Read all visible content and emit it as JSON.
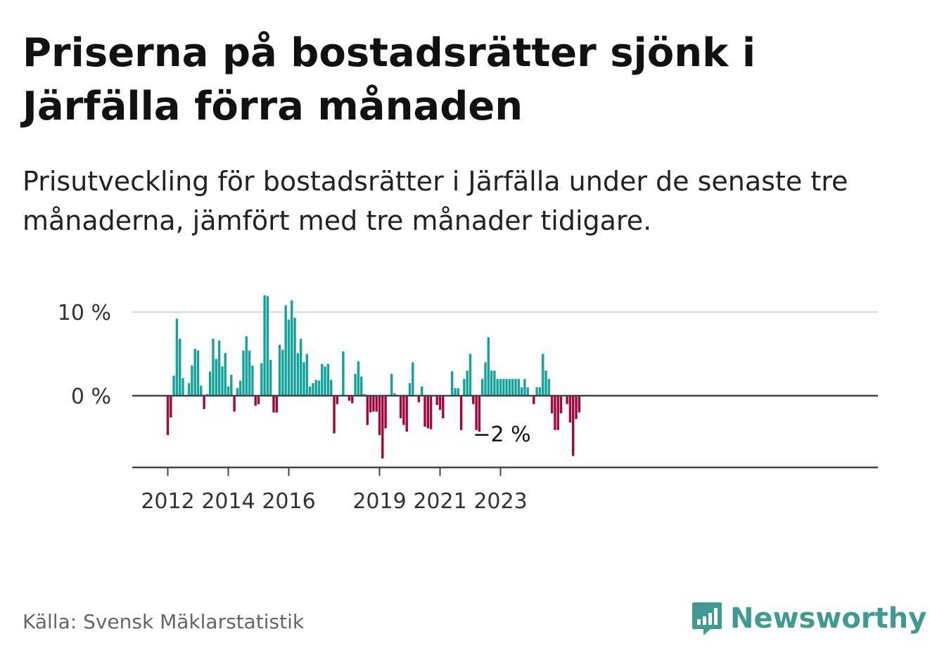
{
  "title": "Priserna på bostadsrätter sjönk i Järfälla förra månaden",
  "subtitle": "Prisutveckling för bostadsrätter i Järfälla under de senaste tre månaderna, jämfört med tre månader tidigare.",
  "source": "Källa: Svensk Mäklarstatistik",
  "logo": {
    "text": "Newsworthy",
    "icon": "newsworthy-logo-icon"
  },
  "colors": {
    "positive": "#12a39b",
    "negative": "#a3063d",
    "axis": "#444444",
    "grid": "#dddddd"
  },
  "chart_data": {
    "type": "bar",
    "y_ticks": [
      {
        "value": 0,
        "label": "0 %"
      },
      {
        "value": 10,
        "label": "10 %"
      }
    ],
    "ylim": [
      -8.5,
      12
    ],
    "x_ticks": [
      {
        "index": 0,
        "label": "2012"
      },
      {
        "index": 20,
        "label": "2014"
      },
      {
        "index": 40,
        "label": "2016"
      },
      {
        "index": 70,
        "label": "2019"
      },
      {
        "index": 90,
        "label": "2021"
      },
      {
        "index": 110,
        "label": "2023"
      }
    ],
    "annotation": {
      "index": 110,
      "label": "−2 %"
    },
    "values": [
      -4.7,
      -2.6,
      2.4,
      9.2,
      6.8,
      2.1,
      0,
      1.5,
      3.6,
      5.6,
      5.4,
      1.2,
      -1.6,
      0.2,
      2.9,
      6.8,
      4.4,
      6.6,
      3.5,
      5.1,
      1.1,
      2.5,
      -1.9,
      0.9,
      1.8,
      5.4,
      7.1,
      5.4,
      3.6,
      -1.2,
      -1.0,
      3.9,
      12.0,
      11.9,
      4.3,
      -2.0,
      -2.0,
      6.1,
      5.5,
      10.8,
      9.1,
      11.4,
      9.3,
      5.1,
      6.8,
      4.0,
      5.0,
      1.1,
      1.5,
      1.9,
      1.8,
      3.8,
      3.5,
      3.8,
      1.9,
      -4.5,
      -1.0,
      0,
      5.3,
      0,
      -0.6,
      -0.9,
      2.6,
      4.1,
      2.3,
      0.2,
      -3.5,
      -2.0,
      -1.9,
      -1.9,
      -4.7,
      -7.5,
      -3.9,
      0,
      2.6,
      0.3,
      0,
      -2.7,
      -3.5,
      -4.3,
      1.5,
      4.0,
      0,
      -0.8,
      1.1,
      -3.7,
      -3.9,
      -4.0,
      0,
      -1.1,
      -1.7,
      -2.7,
      0,
      0,
      2.9,
      0.9,
      0.9,
      -4.1,
      2.0,
      3.0,
      5.0,
      -1.0,
      -4.1,
      -5.0,
      2.0,
      4.0,
      7.0,
      3.0,
      3.0,
      2.0,
      2.0,
      2.0,
      2.0,
      2.0,
      2.0,
      2.0,
      2.0,
      1.0,
      2.0,
      1.0,
      0,
      -1.0,
      1.0,
      1.0,
      5.0,
      3.0,
      2.0,
      -2.1,
      -4.1,
      -4.1,
      -2.1,
      0,
      -1.0,
      -3.2,
      -7.2,
      -2.8,
      -2.0
    ]
  }
}
